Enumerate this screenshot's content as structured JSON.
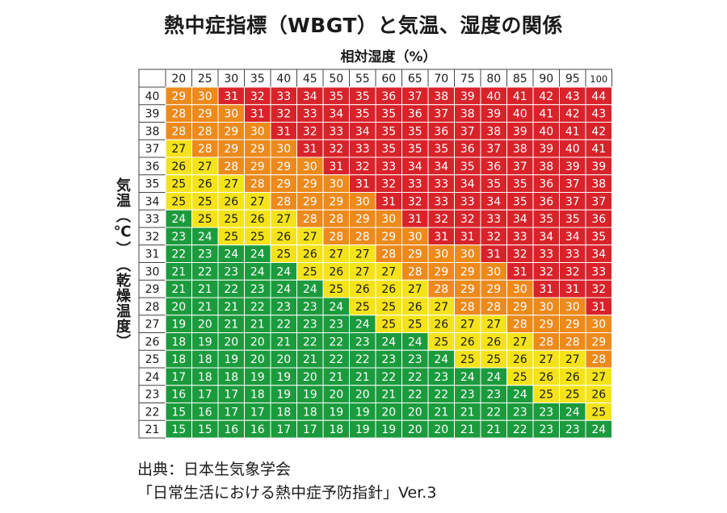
{
  "chart_data": {
    "type": "heatmap",
    "title": "熱中症指標（WBGT）と気温、湿度の関係",
    "xlabel": "相対湿度（%）",
    "ylabel": "気温（℃）　（乾燥温度）",
    "x": [
      "20",
      "25",
      "30",
      "35",
      "40",
      "45",
      "50",
      "55",
      "60",
      "65",
      "70",
      "75",
      "80",
      "85",
      "90",
      "95",
      "100"
    ],
    "y": [
      "40",
      "39",
      "38",
      "37",
      "36",
      "35",
      "34",
      "33",
      "32",
      "31",
      "30",
      "29",
      "28",
      "27",
      "26",
      "25",
      "24",
      "23",
      "22",
      "21"
    ],
    "values": [
      [
        29,
        30,
        31,
        32,
        33,
        34,
        35,
        35,
        36,
        37,
        38,
        39,
        40,
        41,
        42,
        43,
        44
      ],
      [
        28,
        29,
        30,
        31,
        32,
        33,
        34,
        35,
        35,
        36,
        37,
        38,
        39,
        40,
        41,
        42,
        43
      ],
      [
        28,
        28,
        29,
        30,
        31,
        32,
        33,
        34,
        35,
        35,
        36,
        37,
        38,
        39,
        40,
        41,
        42
      ],
      [
        27,
        28,
        29,
        29,
        30,
        31,
        32,
        33,
        35,
        35,
        35,
        36,
        37,
        38,
        39,
        40,
        41
      ],
      [
        26,
        27,
        28,
        29,
        29,
        30,
        31,
        32,
        33,
        34,
        34,
        35,
        36,
        37,
        38,
        39,
        39
      ],
      [
        25,
        26,
        27,
        28,
        29,
        29,
        30,
        31,
        32,
        33,
        33,
        34,
        35,
        35,
        36,
        37,
        38
      ],
      [
        25,
        25,
        26,
        27,
        28,
        29,
        29,
        30,
        31,
        32,
        33,
        33,
        34,
        35,
        36,
        37,
        37
      ],
      [
        24,
        25,
        25,
        26,
        27,
        28,
        28,
        29,
        30,
        31,
        32,
        32,
        33,
        34,
        35,
        35,
        36
      ],
      [
        23,
        24,
        25,
        25,
        26,
        27,
        28,
        28,
        29,
        30,
        31,
        31,
        32,
        33,
        34,
        34,
        35
      ],
      [
        22,
        23,
        24,
        24,
        25,
        26,
        27,
        27,
        28,
        29,
        30,
        30,
        31,
        32,
        33,
        33,
        34
      ],
      [
        21,
        22,
        23,
        24,
        24,
        25,
        26,
        27,
        27,
        28,
        29,
        29,
        30,
        31,
        32,
        32,
        33
      ],
      [
        21,
        21,
        22,
        23,
        24,
        24,
        25,
        26,
        26,
        27,
        28,
        29,
        29,
        30,
        31,
        31,
        32
      ],
      [
        20,
        21,
        21,
        22,
        23,
        23,
        24,
        25,
        25,
        26,
        27,
        28,
        28,
        29,
        30,
        30,
        31
      ],
      [
        19,
        20,
        21,
        21,
        22,
        23,
        23,
        24,
        25,
        25,
        26,
        27,
        27,
        28,
        29,
        29,
        30
      ],
      [
        18,
        19,
        20,
        20,
        21,
        22,
        22,
        23,
        24,
        24,
        25,
        26,
        26,
        27,
        28,
        28,
        29
      ],
      [
        18,
        18,
        19,
        20,
        20,
        21,
        22,
        22,
        23,
        23,
        24,
        25,
        25,
        26,
        27,
        27,
        28
      ],
      [
        17,
        18,
        18,
        19,
        19,
        20,
        21,
        21,
        22,
        22,
        23,
        24,
        24,
        25,
        26,
        26,
        27
      ],
      [
        16,
        17,
        17,
        18,
        19,
        19,
        20,
        20,
        21,
        22,
        22,
        23,
        23,
        24,
        25,
        25,
        26
      ],
      [
        15,
        16,
        17,
        17,
        18,
        18,
        19,
        19,
        20,
        20,
        21,
        21,
        22,
        23,
        23,
        24,
        25
      ],
      [
        15,
        15,
        16,
        16,
        17,
        17,
        18,
        19,
        19,
        20,
        20,
        21,
        21,
        22,
        23,
        23,
        24
      ]
    ],
    "colors": {
      "green": "#1b9b3d",
      "yellow": "#f4e31b",
      "orange": "#ec8a1c",
      "red": "#d8232a",
      "header_bg": "#ffffff"
    },
    "levels": [
      {
        "max": 24,
        "color": "green"
      },
      {
        "max": 27,
        "color": "yellow"
      },
      {
        "max": 30,
        "color": "orange"
      },
      {
        "max": 99,
        "color": "red"
      }
    ]
  },
  "source": {
    "line1": "出典：日本生気象学会",
    "line2": "「日常生活における熱中症予防指針」Ver.3"
  }
}
